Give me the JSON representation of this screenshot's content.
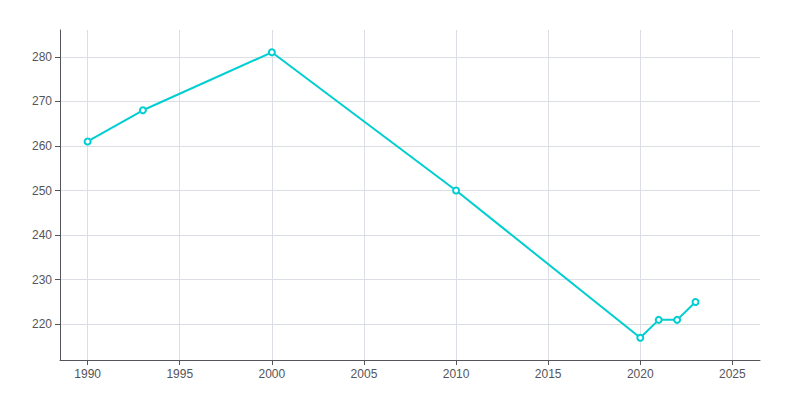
{
  "chart_data": {
    "type": "line",
    "x": [
      1990,
      1993,
      2000,
      2010,
      2020,
      2021,
      2022,
      2023
    ],
    "values": [
      261,
      268,
      281,
      250,
      217,
      221,
      221,
      225
    ],
    "color": "#00CED1",
    "xlim": [
      1988.5,
      2026.5
    ],
    "ylim": [
      212,
      286
    ],
    "xticks": [
      1990,
      1995,
      2000,
      2005,
      2010,
      2015,
      2020,
      2025
    ],
    "yticks": [
      220,
      230,
      240,
      250,
      260,
      270,
      280
    ],
    "grid": true
  }
}
